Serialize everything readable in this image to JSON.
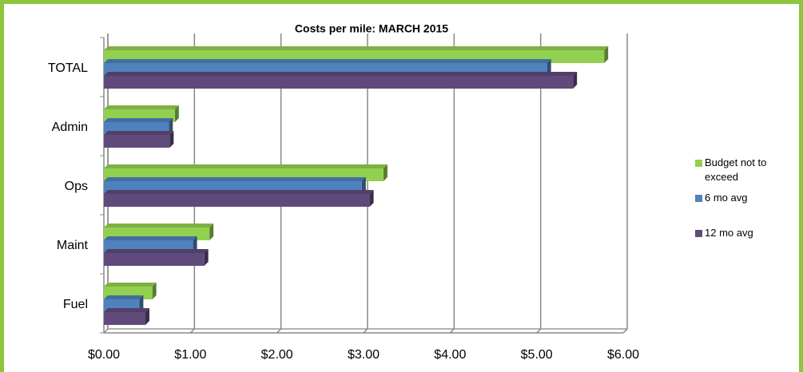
{
  "chart_data": {
    "type": "bar",
    "orientation": "horizontal",
    "title": "Costs per mile: MARCH 2015",
    "categories": [
      "TOTAL",
      "Admin",
      "Ops",
      "Maint",
      "Fuel"
    ],
    "series": [
      {
        "name": "Budget not to exceed",
        "color": "#92d050",
        "values": [
          5.78,
          0.82,
          3.23,
          1.22,
          0.56
        ]
      },
      {
        "name": "6 mo avg",
        "color": "#4f81bd",
        "values": [
          5.12,
          0.75,
          2.98,
          1.03,
          0.41
        ]
      },
      {
        "name": "12 mo avg",
        "color": "#604a7b",
        "values": [
          5.42,
          0.76,
          3.07,
          1.16,
          0.48
        ]
      }
    ],
    "xlim": [
      0,
      6
    ],
    "xticks": [
      {
        "value": 0,
        "label": "$0.00"
      },
      {
        "value": 1,
        "label": "$1.00"
      },
      {
        "value": 2,
        "label": "$2.00"
      },
      {
        "value": 3,
        "label": "$3.00"
      },
      {
        "value": 4,
        "label": "$4.00"
      },
      {
        "value": 5,
        "label": "$5.00"
      },
      {
        "value": 6,
        "label": "$6.00"
      }
    ],
    "grid": true,
    "legend": "right"
  }
}
